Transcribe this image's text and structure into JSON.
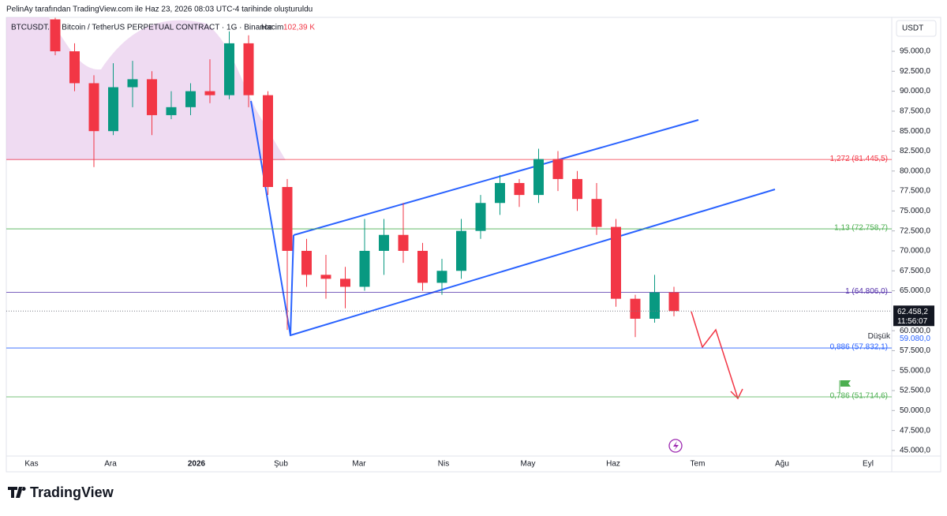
{
  "header": "PelinAy tarafından TradingView.com ile Haz 23, 2026 08:03 UTC-4 tarihinde oluşturuldu",
  "logo": "TradingView",
  "chart_data": {
    "type": "candlestick",
    "title": "BTCUSDT.P · Bitcoin / TetherUS PERPETUAL CONTRACT · 1G · Binance",
    "volume_label": "Hacim",
    "volume_value": "102,39 K",
    "currency": "USDT",
    "x_labels": [
      "Kas",
      "Ara",
      "2026",
      "Şub",
      "Mar",
      "Nis",
      "May",
      "Haz",
      "Tem",
      "Ağu",
      "Eyl"
    ],
    "categories": [
      null,
      null,
      null,
      null,
      null,
      null,
      null,
      null,
      null,
      null,
      null,
      null,
      null,
      null,
      null,
      null,
      null,
      null,
      null,
      null,
      null,
      null,
      null,
      null,
      null,
      null,
      null,
      null,
      null,
      null,
      null,
      null,
      null
    ],
    "open": [
      99000,
      95000,
      91000,
      85000,
      90500,
      91500,
      87000,
      88000,
      90000,
      89500,
      96000,
      89500,
      78000,
      70000,
      67000,
      66500,
      65500,
      70000,
      72000,
      70000,
      66000,
      67500,
      72500,
      76000,
      78500,
      77000,
      81500,
      79000,
      76500,
      73000,
      64000,
      61500,
      64800
    ],
    "high": [
      99200,
      96000,
      92000,
      93500,
      93800,
      92500,
      90000,
      91000,
      94000,
      97500,
      97000,
      90000,
      79000,
      71500,
      69500,
      68000,
      74000,
      74000,
      76000,
      71000,
      69000,
      74000,
      77000,
      79500,
      79000,
      82800,
      82500,
      80000,
      78500,
      74000,
      64500,
      67000,
      65500
    ],
    "low": [
      94500,
      90000,
      80500,
      84500,
      88000,
      84500,
      86500,
      87000,
      88500,
      89000,
      88000,
      77000,
      60100,
      65500,
      64000,
      62800,
      65000,
      67000,
      68500,
      65000,
      64500,
      66500,
      71500,
      74500,
      75500,
      76000,
      77500,
      75000,
      72000,
      63000,
      59200,
      61000,
      61800
    ],
    "close": [
      95000,
      91000,
      85000,
      90500,
      91500,
      87000,
      88000,
      90000,
      89500,
      96000,
      89500,
      78000,
      70000,
      67000,
      66500,
      65500,
      70000,
      72000,
      70000,
      66000,
      67500,
      72500,
      76000,
      78500,
      77000,
      81500,
      79000,
      76500,
      73000,
      64000,
      61500,
      64800,
      62458.2
    ],
    "up_color": "#089981",
    "down_color": "#f23645",
    "ylim": [
      44300,
      99250
    ],
    "yticks": [
      {
        "value": 95000,
        "label": "95.000,0"
      },
      {
        "value": 92500,
        "label": "92.500,0"
      },
      {
        "value": 90000,
        "label": "90.000,0"
      },
      {
        "value": 87500,
        "label": "87.500,0"
      },
      {
        "value": 85000,
        "label": "85.000,0"
      },
      {
        "value": 82500,
        "label": "82.500,0"
      },
      {
        "value": 80000,
        "label": "80.000,0"
      },
      {
        "value": 77500,
        "label": "77.500,0"
      },
      {
        "value": 75000,
        "label": "75.000,0"
      },
      {
        "value": 72500,
        "label": "72.500,0"
      },
      {
        "value": 70000,
        "label": "70.000,0"
      },
      {
        "value": 67500,
        "label": "67.500,0"
      },
      {
        "value": 65000,
        "label": "65.000,0"
      },
      {
        "value": 60000,
        "label": "60.000,0"
      },
      {
        "value": 57500,
        "label": "57.500,0"
      },
      {
        "value": 55000,
        "label": "55.000,0"
      },
      {
        "value": 52500,
        "label": "52.500,0"
      },
      {
        "value": 50000,
        "label": "50.000,0"
      },
      {
        "value": 47500,
        "label": "47.500,0"
      },
      {
        "value": 45000,
        "label": "45.000,0"
      }
    ],
    "levels": [
      {
        "value": 81445.5,
        "label": "1,272 (81.445,5)",
        "color": "#f23645"
      },
      {
        "value": 72758.7,
        "label": "1,13 (72.758,7)",
        "color": "#4caf50"
      },
      {
        "value": 64806.0,
        "label": "1 (64.806,0)",
        "color": "#512da8"
      },
      {
        "value": 57832.1,
        "label": "0,886 (57.832,1)",
        "color": "#2962ff"
      },
      {
        "value": 51714.6,
        "label": "0,786 (51.714,6)",
        "color": "#4caf50"
      }
    ],
    "last_price": {
      "value": 62458.2,
      "label": "62.458,2",
      "countdown": "11:56:07"
    },
    "low_marker": {
      "name": "Düşük",
      "value": 59080,
      "label": "59.080,0"
    }
  }
}
